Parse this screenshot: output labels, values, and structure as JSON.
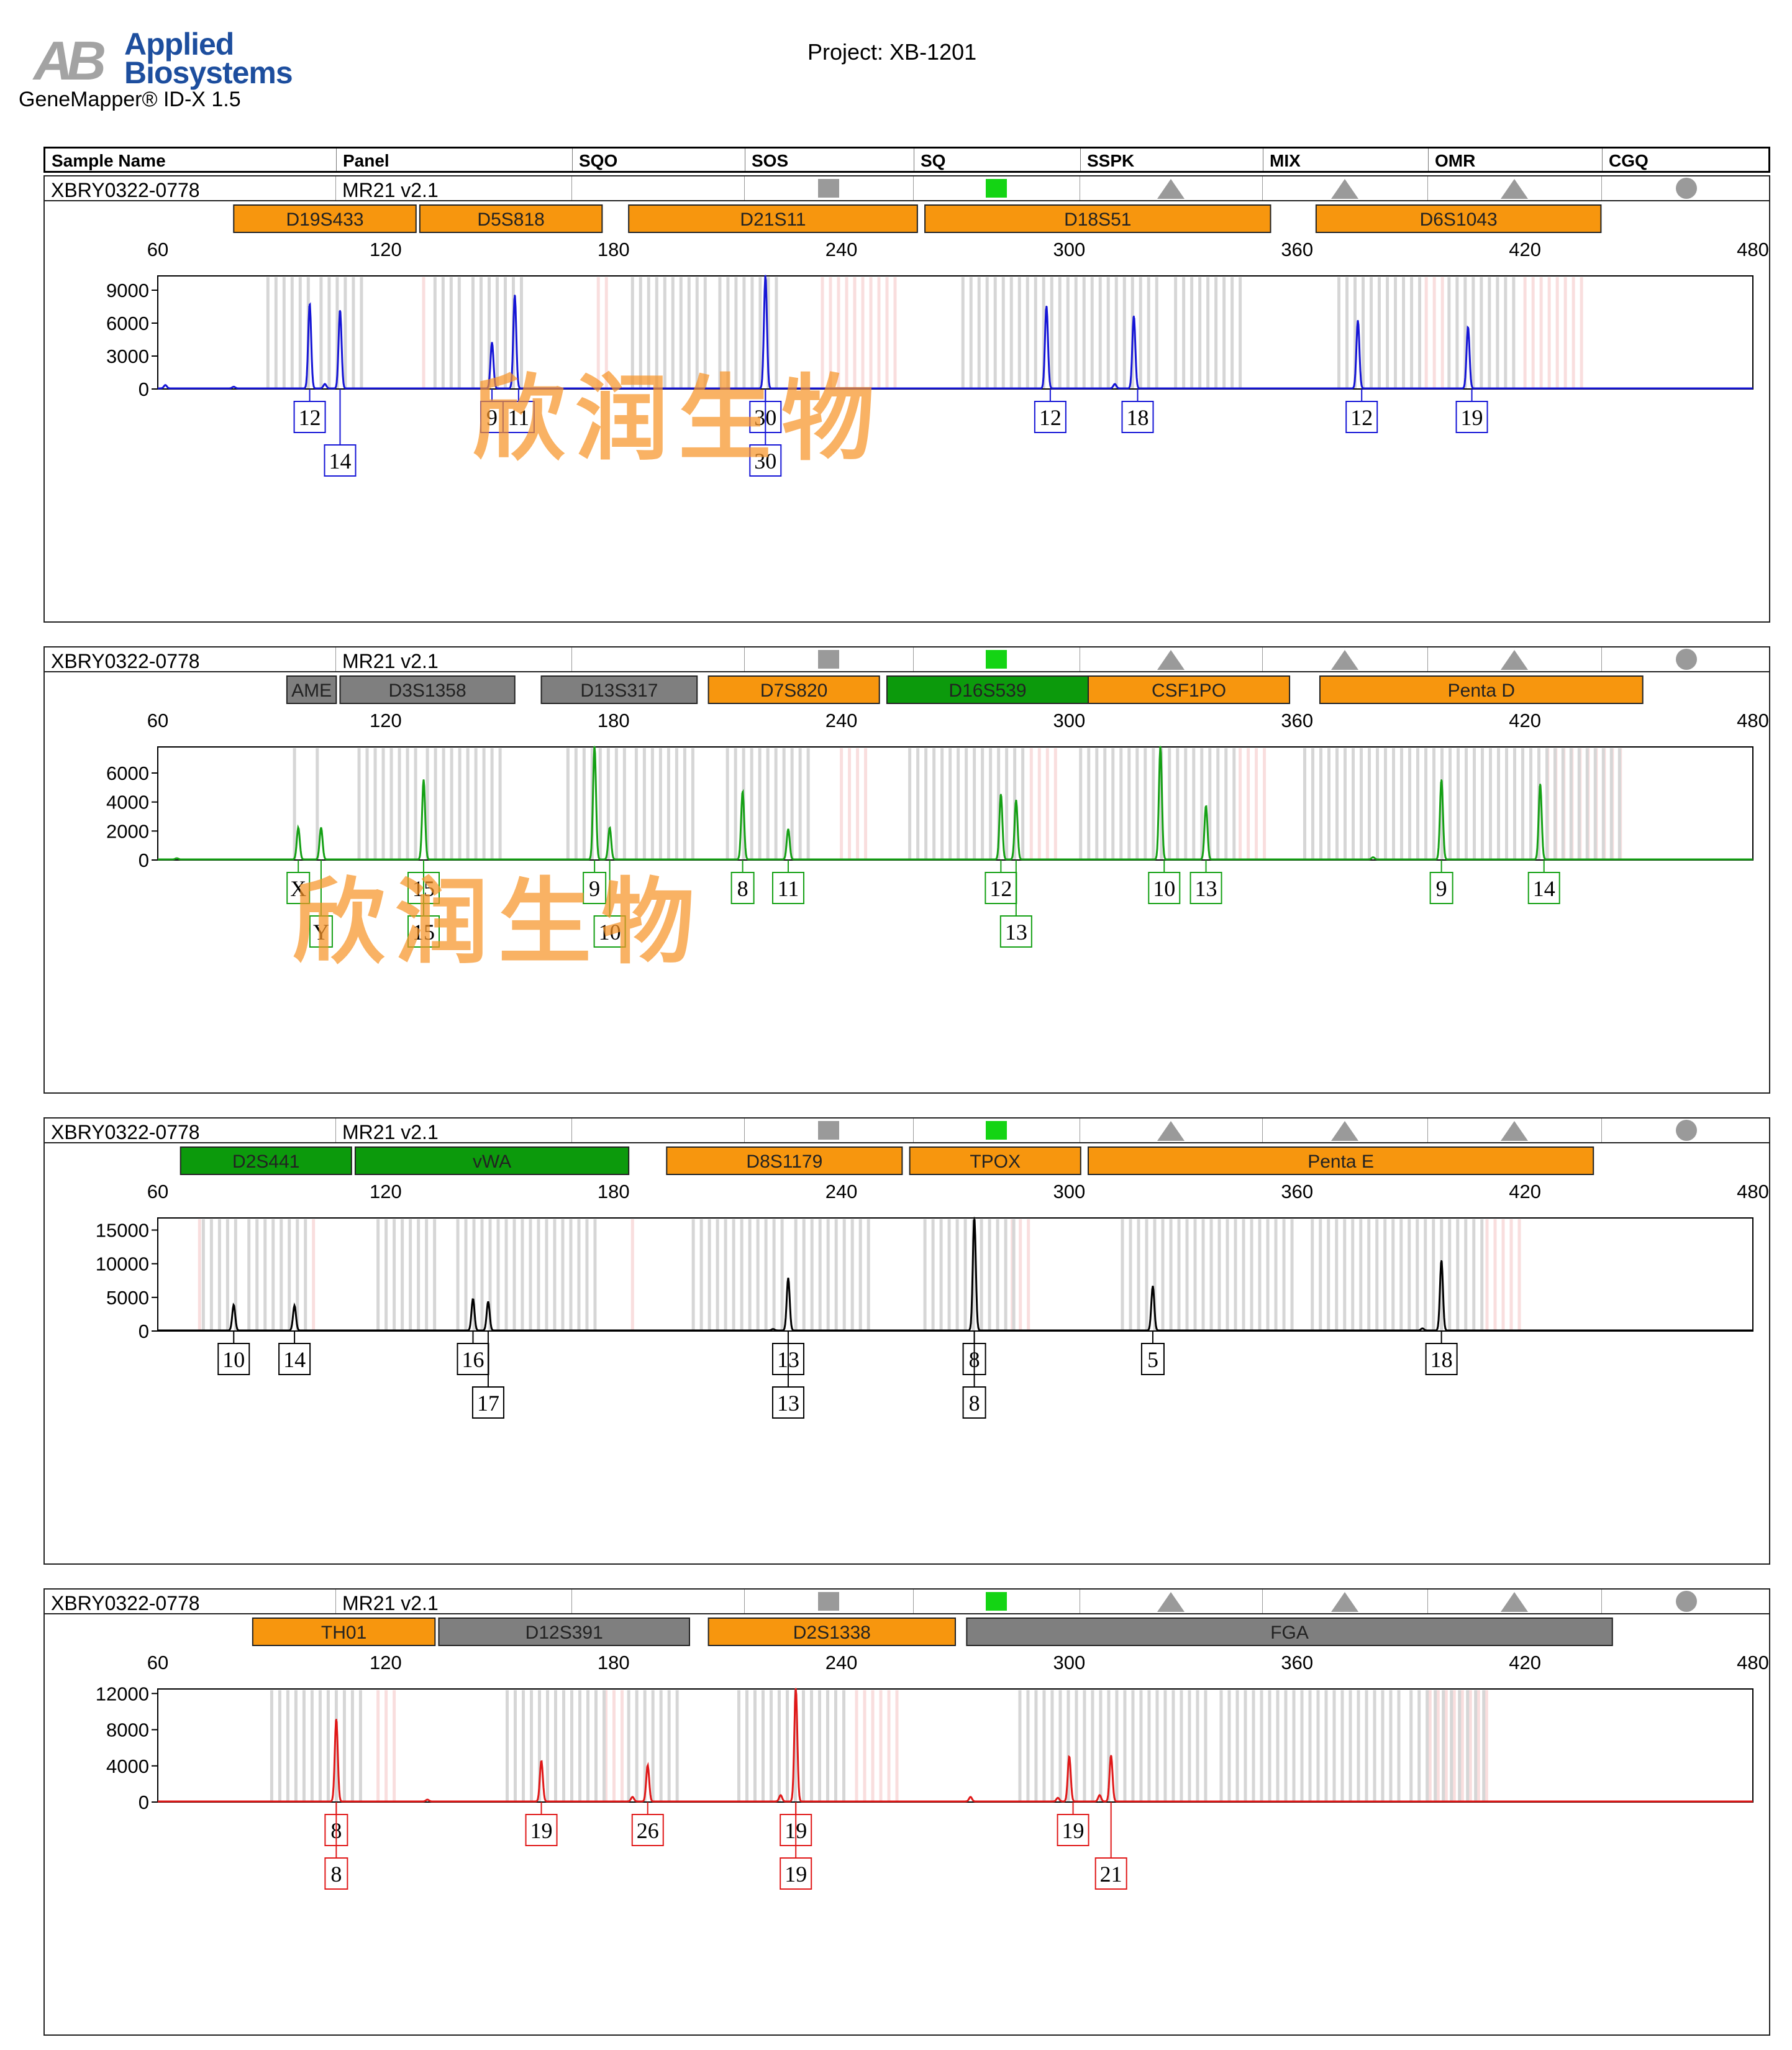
{
  "brand": {
    "logo_mark": "AB",
    "logo_line1": "Applied",
    "logo_line2": "Biosystems"
  },
  "app_name": "GeneMapper® ID-X  1.5",
  "project": "Project: XB-1201",
  "header": {
    "columns": [
      "Sample Name",
      "Panel",
      "SQO",
      "SOS",
      "SQ",
      "SSPK",
      "MIX",
      "OMR",
      "CGQ"
    ]
  },
  "indicator_colors": {
    "gray": "#9a9a9a",
    "green": "#14d414"
  },
  "watermark": "欣润生物",
  "chart_data": [
    {
      "type": "line",
      "sample_name": "XBRY0322-0778",
      "panel": "MR21  v2.1",
      "indicators": {
        "SOS": "gray-square",
        "SQ": "green-square",
        "SSPK": "gray-triangle",
        "MIX": "gray-triangle",
        "OMR": "gray-triangle",
        "CGQ": "gray-octagon"
      },
      "color": "#1515d6",
      "xlim": [
        60,
        480
      ],
      "xticks": [
        "60",
        "120",
        "180",
        "240",
        "300",
        "360",
        "420",
        "480"
      ],
      "ylim": [
        0,
        10300
      ],
      "yticks": [
        "0",
        "3000",
        "6000",
        "9000"
      ],
      "ytick_values": [
        0,
        3000,
        6000,
        9000
      ],
      "markers": [
        {
          "label": "D19S433",
          "start": 80,
          "end": 128,
          "color": "#f7960e"
        },
        {
          "label": "D5S818",
          "start": 129,
          "end": 177,
          "color": "#f7960e"
        },
        {
          "label": "D21S11",
          "start": 184,
          "end": 260,
          "color": "#f7960e"
        },
        {
          "label": "D18S51",
          "start": 262,
          "end": 353,
          "color": "#f7960e"
        },
        {
          "label": "D6S1043",
          "start": 365,
          "end": 440,
          "color": "#f7960e"
        }
      ],
      "peaks": [
        {
          "x": 100,
          "y": 7700
        },
        {
          "x": 104,
          "y": 400
        },
        {
          "x": 108,
          "y": 7100
        },
        {
          "x": 148,
          "y": 4200
        },
        {
          "x": 154,
          "y": 8500
        },
        {
          "x": 220,
          "y": 10300
        },
        {
          "x": 294,
          "y": 7500
        },
        {
          "x": 312,
          "y": 400
        },
        {
          "x": 317,
          "y": 6600
        },
        {
          "x": 376,
          "y": 6200
        },
        {
          "x": 405,
          "y": 5600
        }
      ],
      "bump_peaks": [
        {
          "x": 62,
          "y": 300
        },
        {
          "x": 80,
          "y": 150
        }
      ],
      "allele_labels": [
        {
          "text": "12",
          "x": 100,
          "row": 1
        },
        {
          "text": "14",
          "x": 108,
          "row": 2
        },
        {
          "text": "9",
          "x": 148,
          "row": 1
        },
        {
          "text": "11",
          "x": 155,
          "row": 1
        },
        {
          "text": "30",
          "x": 220,
          "row": 1
        },
        {
          "text": "30",
          "x": 220,
          "row": 2
        },
        {
          "text": "12",
          "x": 295,
          "row": 1
        },
        {
          "text": "18",
          "x": 318,
          "row": 1
        },
        {
          "text": "12",
          "x": 377,
          "row": 1
        },
        {
          "text": "19",
          "x": 406,
          "row": 1
        }
      ],
      "bins_gray": [
        [
          89,
          101
        ],
        [
          103,
          115
        ],
        [
          133,
          141
        ],
        [
          143,
          157
        ],
        [
          185,
          205
        ],
        [
          208,
          225
        ],
        [
          272,
          324
        ],
        [
          328,
          346
        ],
        [
          371,
          394
        ],
        [
          400,
          418
        ]
      ],
      "bins_pink": [
        [
          130,
          132
        ],
        [
          176,
          180
        ],
        [
          235,
          256
        ],
        [
          394,
          399
        ],
        [
          420,
          436
        ]
      ]
    },
    {
      "type": "line",
      "sample_name": "XBRY0322-0778",
      "panel": "MR21  v2.1",
      "indicators": {
        "SOS": "gray-square",
        "SQ": "green-square",
        "SSPK": "gray-triangle",
        "MIX": "gray-triangle",
        "OMR": "gray-triangle",
        "CGQ": "gray-octagon"
      },
      "color": "#14a014",
      "xlim": [
        60,
        480
      ],
      "xticks": [
        "60",
        "120",
        "180",
        "240",
        "300",
        "360",
        "420",
        "480"
      ],
      "ylim": [
        0,
        7800
      ],
      "yticks": [
        "0",
        "2000",
        "4000",
        "6000"
      ],
      "ytick_values": [
        0,
        2000,
        4000,
        6000
      ],
      "markers": [
        {
          "label": "AME",
          "start": 94,
          "end": 107,
          "color": "#7f7f7f"
        },
        {
          "label": "D3S1358",
          "start": 108,
          "end": 154,
          "color": "#7f7f7f"
        },
        {
          "label": "D13S317",
          "start": 161,
          "end": 202,
          "color": "#7f7f7f"
        },
        {
          "label": "D7S820",
          "start": 205,
          "end": 250,
          "color": "#f7960e"
        },
        {
          "label": "D16S539",
          "start": 252,
          "end": 305,
          "color": "#0c9a0c"
        },
        {
          "label": "CSF1PO",
          "start": 305,
          "end": 358,
          "color": "#f7960e"
        },
        {
          "label": "Penta D",
          "start": 366,
          "end": 451,
          "color": "#f7960e"
        }
      ],
      "peaks": [
        {
          "x": 97,
          "y": 2200
        },
        {
          "x": 103,
          "y": 2200
        },
        {
          "x": 130,
          "y": 5500
        },
        {
          "x": 175,
          "y": 7800
        },
        {
          "x": 179,
          "y": 2200
        },
        {
          "x": 214,
          "y": 4700
        },
        {
          "x": 226,
          "y": 2100
        },
        {
          "x": 282,
          "y": 4500
        },
        {
          "x": 286,
          "y": 4100
        },
        {
          "x": 324,
          "y": 7800
        },
        {
          "x": 336,
          "y": 3700
        },
        {
          "x": 398,
          "y": 5500
        },
        {
          "x": 424,
          "y": 5200
        }
      ],
      "bump_peaks": [
        {
          "x": 65,
          "y": 80
        },
        {
          "x": 380,
          "y": 150
        }
      ],
      "allele_labels": [
        {
          "text": "X",
          "x": 97,
          "row": 1
        },
        {
          "text": "Y",
          "x": 103,
          "row": 2
        },
        {
          "text": "15",
          "x": 130,
          "row": 1
        },
        {
          "text": "15",
          "x": 130,
          "row": 2
        },
        {
          "text": "9",
          "x": 175,
          "row": 1
        },
        {
          "text": "10",
          "x": 179,
          "row": 2
        },
        {
          "text": "8",
          "x": 214,
          "row": 1
        },
        {
          "text": "11",
          "x": 226,
          "row": 1
        },
        {
          "text": "12",
          "x": 282,
          "row": 1
        },
        {
          "text": "13",
          "x": 286,
          "row": 2
        },
        {
          "text": "10",
          "x": 325,
          "row": 1
        },
        {
          "text": "13",
          "x": 336,
          "row": 1
        },
        {
          "text": "9",
          "x": 398,
          "row": 1
        },
        {
          "text": "14",
          "x": 425,
          "row": 1
        }
      ],
      "bins_gray": [
        [
          96,
          98
        ],
        [
          102,
          104
        ],
        [
          113,
          128
        ],
        [
          131,
          151
        ],
        [
          168,
          184
        ],
        [
          186,
          203
        ],
        [
          210,
          232
        ],
        [
          258,
          289
        ],
        [
          303,
          344
        ],
        [
          362,
          428
        ],
        [
          430,
          445
        ]
      ],
      "bins_pink": [
        [
          240,
          248
        ],
        [
          290,
          298
        ],
        [
          345,
          352
        ],
        [
          426,
          446
        ]
      ]
    },
    {
      "type": "line",
      "sample_name": "XBRY0322-0778",
      "panel": "MR21  v2.1",
      "indicators": {
        "SOS": "gray-square",
        "SQ": "green-square",
        "SSPK": "gray-triangle",
        "MIX": "gray-triangle",
        "OMR": "gray-triangle",
        "CGQ": "gray-octagon"
      },
      "color": "#000000",
      "xlim": [
        60,
        480
      ],
      "xticks": [
        "60",
        "120",
        "180",
        "240",
        "300",
        "360",
        "420",
        "480"
      ],
      "ylim": [
        0,
        16800
      ],
      "yticks": [
        "0",
        "5000",
        "10000",
        "15000"
      ],
      "ytick_values": [
        0,
        5000,
        10000,
        15000
      ],
      "markers": [
        {
          "label": "D2S441",
          "start": 66,
          "end": 111,
          "color": "#0c9a0c"
        },
        {
          "label": "vWA",
          "start": 112,
          "end": 184,
          "color": "#0c9a0c"
        },
        {
          "label": "D8S1179",
          "start": 194,
          "end": 256,
          "color": "#f7960e"
        },
        {
          "label": "TPOX",
          "start": 258,
          "end": 303,
          "color": "#f7960e"
        },
        {
          "label": "Penta E",
          "start": 305,
          "end": 438,
          "color": "#f7960e"
        }
      ],
      "peaks": [
        {
          "x": 80,
          "y": 3800
        },
        {
          "x": 96,
          "y": 3700
        },
        {
          "x": 143,
          "y": 4700
        },
        {
          "x": 147,
          "y": 4300
        },
        {
          "x": 226,
          "y": 7800
        },
        {
          "x": 275,
          "y": 16800
        },
        {
          "x": 322,
          "y": 6600
        },
        {
          "x": 398,
          "y": 10400
        }
      ],
      "bump_peaks": [
        {
          "x": 222,
          "y": 200
        },
        {
          "x": 393,
          "y": 300
        }
      ],
      "allele_labels": [
        {
          "text": "10",
          "x": 80,
          "row": 1
        },
        {
          "text": "14",
          "x": 96,
          "row": 1
        },
        {
          "text": "16",
          "x": 143,
          "row": 1
        },
        {
          "text": "17",
          "x": 147,
          "row": 2
        },
        {
          "text": "13",
          "x": 226,
          "row": 1
        },
        {
          "text": "13",
          "x": 226,
          "row": 2
        },
        {
          "text": "8",
          "x": 275,
          "row": 1
        },
        {
          "text": "8",
          "x": 275,
          "row": 2
        },
        {
          "text": "5",
          "x": 322,
          "row": 1
        },
        {
          "text": "18",
          "x": 398,
          "row": 1
        }
      ],
      "bins_gray": [
        [
          72,
          82
        ],
        [
          84,
          100
        ],
        [
          118,
          134
        ],
        [
          139,
          154
        ],
        [
          156,
          176
        ],
        [
          201,
          226
        ],
        [
          228,
          248
        ],
        [
          262,
          287
        ],
        [
          314,
          360
        ],
        [
          364,
          410
        ]
      ],
      "bins_pink": [
        [
          71,
          73
        ],
        [
          101,
          103
        ],
        [
          185,
          187
        ],
        [
          285,
          290
        ],
        [
          410,
          420
        ]
      ]
    },
    {
      "type": "line",
      "sample_name": "XBRY0322-0778",
      "panel": "MR21  v2.1",
      "indicators": {
        "SOS": "gray-square",
        "SQ": "green-square",
        "SSPK": "gray-triangle",
        "MIX": "gray-triangle",
        "OMR": "gray-triangle",
        "CGQ": "gray-octagon"
      },
      "color": "#e01818",
      "xlim": [
        60,
        480
      ],
      "xticks": [
        "60",
        "120",
        "180",
        "240",
        "300",
        "360",
        "420",
        "480"
      ],
      "ylim": [
        0,
        12500
      ],
      "yticks": [
        "0",
        "4000",
        "8000",
        "12000"
      ],
      "ytick_values": [
        0,
        4000,
        8000,
        12000
      ],
      "markers": [
        {
          "label": "TH01",
          "start": 85,
          "end": 133,
          "color": "#f7960e"
        },
        {
          "label": "D12S391",
          "start": 134,
          "end": 200,
          "color": "#7f7f7f"
        },
        {
          "label": "D2S1338",
          "start": 205,
          "end": 270,
          "color": "#f7960e"
        },
        {
          "label": "FGA",
          "start": 273,
          "end": 443,
          "color": "#7f7f7f"
        }
      ],
      "peaks": [
        {
          "x": 107,
          "y": 9100
        },
        {
          "x": 161,
          "y": 4500
        },
        {
          "x": 189,
          "y": 4000
        },
        {
          "x": 228,
          "y": 12500
        },
        {
          "x": 300,
          "y": 5000
        },
        {
          "x": 311,
          "y": 5100
        }
      ],
      "bump_peaks": [
        {
          "x": 131,
          "y": 200
        },
        {
          "x": 185,
          "y": 500
        },
        {
          "x": 224,
          "y": 700
        },
        {
          "x": 274,
          "y": 500
        },
        {
          "x": 297,
          "y": 400
        },
        {
          "x": 308,
          "y": 700
        }
      ],
      "allele_labels": [
        {
          "text": "8",
          "x": 107,
          "row": 1
        },
        {
          "text": "8",
          "x": 107,
          "row": 2
        },
        {
          "text": "19",
          "x": 161,
          "row": 1
        },
        {
          "text": "26",
          "x": 189,
          "row": 1
        },
        {
          "text": "19",
          "x": 228,
          "row": 1
        },
        {
          "text": "19",
          "x": 228,
          "row": 2
        },
        {
          "text": "19",
          "x": 301,
          "row": 1
        },
        {
          "text": "21",
          "x": 311,
          "row": 2
        }
      ],
      "bins_gray": [
        [
          90,
          115
        ],
        [
          152,
          178
        ],
        [
          184,
          198
        ],
        [
          213,
          242
        ],
        [
          287,
          338
        ],
        [
          340,
          388
        ],
        [
          390,
          410
        ]
      ],
      "bins_pink": [
        [
          118,
          123
        ],
        [
          178,
          183
        ],
        [
          244,
          256
        ],
        [
          395,
          412
        ]
      ]
    }
  ]
}
